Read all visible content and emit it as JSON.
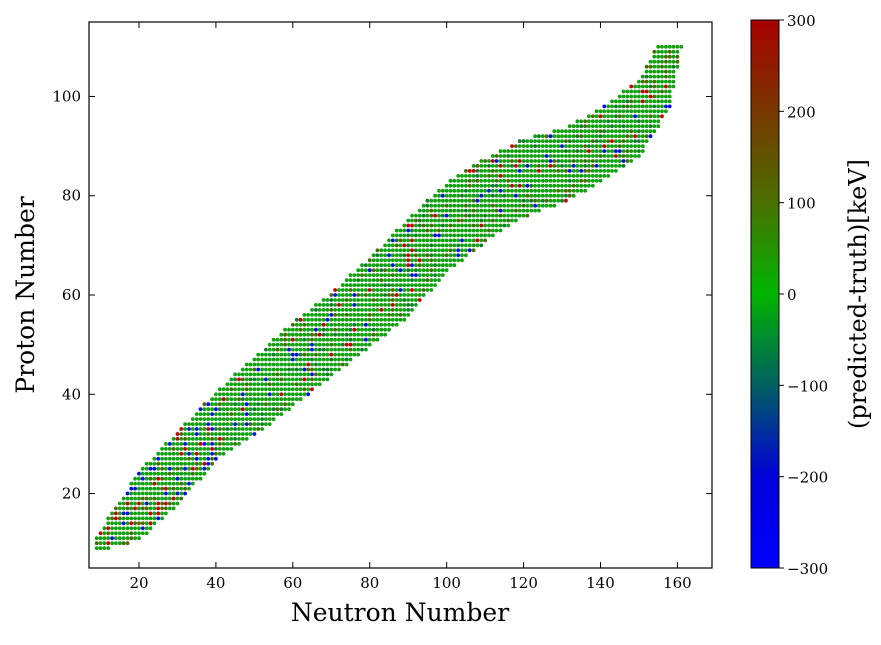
{
  "chart_data": {
    "type": "scatter",
    "title": "",
    "xlabel": "Neutron Number",
    "ylabel": "Proton Number",
    "xlim": [
      7,
      169
    ],
    "ylim": [
      5,
      115
    ],
    "x_ticks": [
      20,
      40,
      60,
      80,
      100,
      120,
      140,
      160
    ],
    "y_ticks": [
      20,
      40,
      60,
      80,
      100
    ],
    "grid": false,
    "legend": "none",
    "series": [
      {
        "description_of_points": "approximate nuclear chart band; one marker per (N, Z) nucleus, color = predicted minus truth",
        "band_lower_edge": [
          [
            10,
            9
          ],
          [
            20,
            11
          ],
          [
            30,
            18
          ],
          [
            40,
            27
          ],
          [
            50,
            32
          ],
          [
            60,
            38
          ],
          [
            70,
            44
          ],
          [
            80,
            50
          ],
          [
            90,
            56
          ],
          [
            100,
            65
          ],
          [
            110,
            71
          ],
          [
            120,
            76
          ],
          [
            130,
            79
          ],
          [
            140,
            83
          ],
          [
            150,
            88
          ],
          [
            158,
            98
          ],
          [
            161,
            110
          ]
        ],
        "band_upper_edge": [
          [
            9,
            11
          ],
          [
            15,
            18
          ],
          [
            20,
            24
          ],
          [
            30,
            32
          ],
          [
            40,
            40
          ],
          [
            50,
            47
          ],
          [
            60,
            54
          ],
          [
            70,
            60
          ],
          [
            80,
            67
          ],
          [
            90,
            75
          ],
          [
            100,
            82
          ],
          [
            110,
            87
          ],
          [
            120,
            91
          ],
          [
            130,
            93
          ],
          [
            140,
            97
          ],
          [
            150,
            103
          ],
          [
            155,
            110
          ],
          [
            161,
            110
          ]
        ],
        "color_value_range": [
          -300,
          300
        ]
      }
    ],
    "colorbar": {
      "label": "(predicted-truth)[keV]",
      "range": [
        -300,
        300
      ],
      "ticks": [
        -300,
        -200,
        -100,
        0,
        100,
        200,
        300
      ],
      "tick_labels": [
        "−300",
        "−200",
        "−100",
        "0",
        "100",
        "200",
        "300"
      ],
      "colors": [
        "#0000ff",
        "#0000e0",
        "#005a5a",
        "#00b400",
        "#4a7000",
        "#7a3000",
        "#a00000"
      ]
    }
  }
}
